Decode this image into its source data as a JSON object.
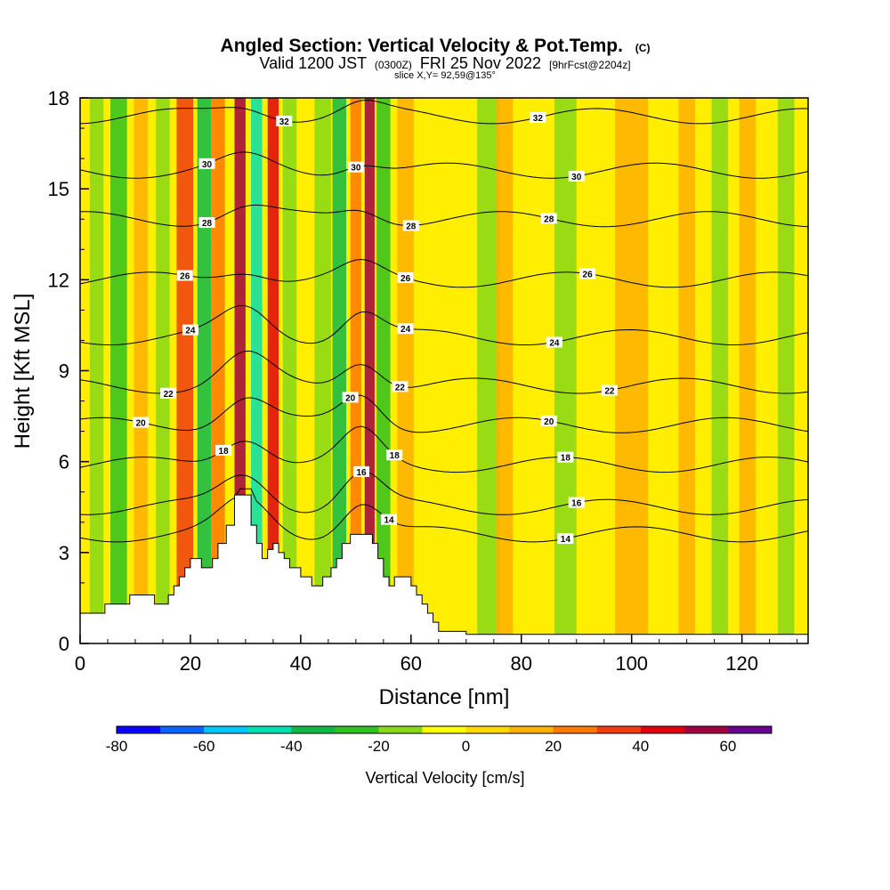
{
  "header": {
    "title_main": "Angled Section: Vertical Velocity & Pot.Temp.",
    "title_tag": "(C)",
    "valid_prefix": "Valid 1200 JST",
    "valid_zulu": "(0300Z)",
    "valid_date": "FRI 25 Nov 2022",
    "valid_fcst": "[9hrFcst@2204z]",
    "slice": "slice X,Y= 92,59@135°"
  },
  "chart_data": {
    "type": "heatmap",
    "xlabel": "Distance [nm]",
    "ylabel": "Height [Kft MSL]",
    "xlim": [
      0,
      132
    ],
    "ylim": [
      0,
      18
    ],
    "x_ticks": [
      "0",
      "20",
      "40",
      "60",
      "80",
      "100",
      "120"
    ],
    "y_ticks": [
      "0",
      "3",
      "6",
      "9",
      "12",
      "15",
      "18"
    ],
    "x_tick_values": [
      0,
      20,
      40,
      60,
      80,
      100,
      120
    ],
    "y_tick_values": [
      0,
      3,
      6,
      9,
      12,
      15,
      18
    ],
    "colorbar": {
      "label": "Vertical Velocity [cm/s]",
      "min": -80,
      "max": 70,
      "step": 10,
      "ticks": [
        "-80",
        "-60",
        "-40",
        "-20",
        "0",
        "20",
        "40",
        "60"
      ],
      "tick_values": [
        -80,
        -60,
        -40,
        -20,
        0,
        20,
        40,
        60
      ],
      "colors": [
        "#0a00ff",
        "#0a64ff",
        "#00c8ff",
        "#00e0b0",
        "#10b848",
        "#30c020",
        "#88d818",
        "#ffff00",
        "#ffd800",
        "#ffb000",
        "#ff7800",
        "#f03c10",
        "#e00010",
        "#a00040",
        "#680090"
      ]
    },
    "terrain_profile": [
      [
        0,
        1.0
      ],
      [
        4.5,
        1.0
      ],
      [
        4.5,
        1.3
      ],
      [
        9,
        1.3
      ],
      [
        9,
        1.6
      ],
      [
        13.5,
        1.6
      ],
      [
        13.5,
        1.3
      ],
      [
        16,
        1.3
      ],
      [
        16,
        1.6
      ],
      [
        17,
        1.6
      ],
      [
        17,
        1.9
      ],
      [
        18,
        1.9
      ],
      [
        18,
        2.2
      ],
      [
        19,
        2.2
      ],
      [
        19,
        2.5
      ],
      [
        20,
        2.5
      ],
      [
        20,
        2.8
      ],
      [
        22,
        2.8
      ],
      [
        22,
        2.5
      ],
      [
        24,
        2.5
      ],
      [
        24,
        2.8
      ],
      [
        25,
        2.8
      ],
      [
        25,
        3.3
      ],
      [
        26.5,
        3.3
      ],
      [
        26.5,
        3.9
      ],
      [
        28,
        3.9
      ],
      [
        28,
        4.9
      ],
      [
        31,
        4.9
      ],
      [
        31,
        3.9
      ],
      [
        32,
        3.9
      ],
      [
        32,
        3.3
      ],
      [
        33,
        3.3
      ],
      [
        33,
        2.8
      ],
      [
        34,
        2.8
      ],
      [
        34,
        3.1
      ],
      [
        35,
        3.1
      ],
      [
        35,
        3.3
      ],
      [
        36,
        3.3
      ],
      [
        36,
        3.0
      ],
      [
        37,
        3.0
      ],
      [
        37,
        2.8
      ],
      [
        38,
        2.8
      ],
      [
        38,
        2.5
      ],
      [
        40,
        2.5
      ],
      [
        40,
        2.2
      ],
      [
        42,
        2.2
      ],
      [
        42,
        1.9
      ],
      [
        44,
        1.9
      ],
      [
        44,
        2.2
      ],
      [
        45.5,
        2.2
      ],
      [
        45.5,
        2.5
      ],
      [
        46.5,
        2.5
      ],
      [
        46.5,
        2.8
      ],
      [
        47.5,
        2.8
      ],
      [
        47.5,
        3.3
      ],
      [
        49,
        3.3
      ],
      [
        49,
        3.6
      ],
      [
        53,
        3.6
      ],
      [
        53,
        3.3
      ],
      [
        54,
        3.3
      ],
      [
        54,
        2.8
      ],
      [
        55,
        2.8
      ],
      [
        55,
        2.2
      ],
      [
        56,
        2.2
      ],
      [
        56,
        1.9
      ],
      [
        57,
        1.9
      ],
      [
        57,
        2.2
      ],
      [
        60,
        2.2
      ],
      [
        60,
        1.9
      ],
      [
        61,
        1.9
      ],
      [
        61,
        1.6
      ],
      [
        62,
        1.6
      ],
      [
        62,
        1.3
      ],
      [
        63,
        1.3
      ],
      [
        63,
        1.0
      ],
      [
        64,
        1.0
      ],
      [
        64,
        0.7
      ],
      [
        65,
        0.7
      ],
      [
        65,
        0.4
      ],
      [
        70,
        0.4
      ],
      [
        70,
        0.3
      ],
      [
        132,
        0.3
      ],
      [
        132,
        0
      ]
    ],
    "wind_bands": [
      {
        "x": 3,
        "w": 2.5,
        "v": -20
      },
      {
        "x": 7,
        "w": 3,
        "v": -25
      },
      {
        "x": 11,
        "w": 2.5,
        "v": 15
      },
      {
        "x": 15,
        "w": 2.5,
        "v": -20
      },
      {
        "x": 19,
        "w": 3,
        "v": 35
      },
      {
        "x": 22.5,
        "w": 2.5,
        "v": -35
      },
      {
        "x": 25,
        "w": 2.5,
        "v": 25
      },
      {
        "x": 29,
        "w": 2,
        "v": 55
      },
      {
        "x": 32,
        "w": 2,
        "v": -45
      },
      {
        "x": 35,
        "w": 2,
        "v": 45
      },
      {
        "x": 38,
        "w": 2.5,
        "v": -20
      },
      {
        "x": 44,
        "w": 3,
        "v": -20
      },
      {
        "x": 47,
        "w": 2.5,
        "v": -35
      },
      {
        "x": 50,
        "w": 2,
        "v": 25
      },
      {
        "x": 52.5,
        "w": 1.8,
        "v": 50
      },
      {
        "x": 55,
        "w": 2.5,
        "v": -25
      },
      {
        "x": 59,
        "w": 3,
        "v": 15
      },
      {
        "x": 74,
        "w": 4,
        "v": -20
      },
      {
        "x": 77,
        "w": 3,
        "v": 10
      },
      {
        "x": 88,
        "w": 4,
        "v": -20
      },
      {
        "x": 100,
        "w": 6,
        "v": 10
      },
      {
        "x": 110,
        "w": 3,
        "v": 10
      },
      {
        "x": 116,
        "w": 3,
        "v": -15
      },
      {
        "x": 121,
        "w": 3,
        "v": 10
      },
      {
        "x": 128,
        "w": 3,
        "v": -20
      }
    ],
    "isentropes": [
      {
        "theta": "14",
        "level": 3.6,
        "label_x": [
          56,
          88
        ]
      },
      {
        "theta": "16",
        "level": 4.5,
        "label_x": [
          51,
          90
        ]
      },
      {
        "theta": "18",
        "level": 5.9,
        "label_x": [
          26,
          57,
          88
        ]
      },
      {
        "theta": "20",
        "level": 7.2,
        "label_x": [
          11,
          49,
          85
        ]
      },
      {
        "theta": "22",
        "level": 8.5,
        "label_x": [
          16,
          58,
          96
        ]
      },
      {
        "theta": "24",
        "level": 10.1,
        "label_x": [
          20,
          59,
          86
        ]
      },
      {
        "theta": "26",
        "level": 12.0,
        "label_x": [
          19,
          59,
          92
        ]
      },
      {
        "theta": "28",
        "level": 14.0,
        "label_x": [
          23,
          60,
          85
        ]
      },
      {
        "theta": "30",
        "level": 15.6,
        "label_x": [
          23,
          50,
          90
        ]
      },
      {
        "theta": "32",
        "level": 17.4,
        "label_x": [
          37,
          83
        ]
      }
    ]
  }
}
